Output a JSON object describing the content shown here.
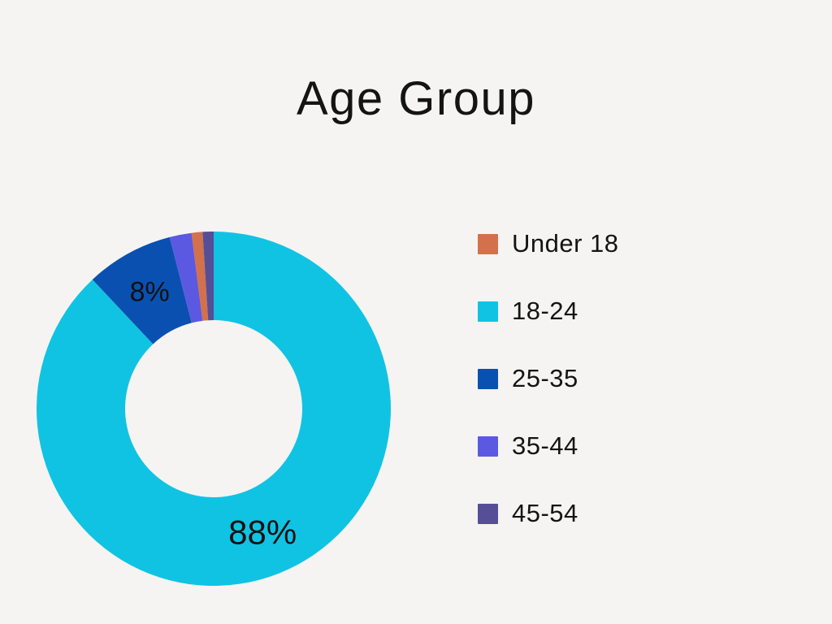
{
  "page": {
    "background_color": "#F5F4F2",
    "text_color": "#141414"
  },
  "chart_data": {
    "type": "pie",
    "subtype": "donut",
    "title": "Age Group",
    "categories": [
      "Under 18",
      "18-24",
      "25-35",
      "35-44",
      "45-54"
    ],
    "values": [
      1,
      88,
      8,
      2,
      1
    ],
    "unit": "%",
    "colors": [
      "#D2714B",
      "#10C3E3",
      "#0A50B0",
      "#5B59E1",
      "#564F97"
    ],
    "hole_ratio": 0.5,
    "start_angle_deg": 0,
    "direction": "clockwise",
    "sort": "descending",
    "labels_shown": [
      "88%",
      "8%"
    ],
    "label_min_percent": 5,
    "legend_position": "right",
    "grid": false,
    "background": "#F5F4F2"
  }
}
